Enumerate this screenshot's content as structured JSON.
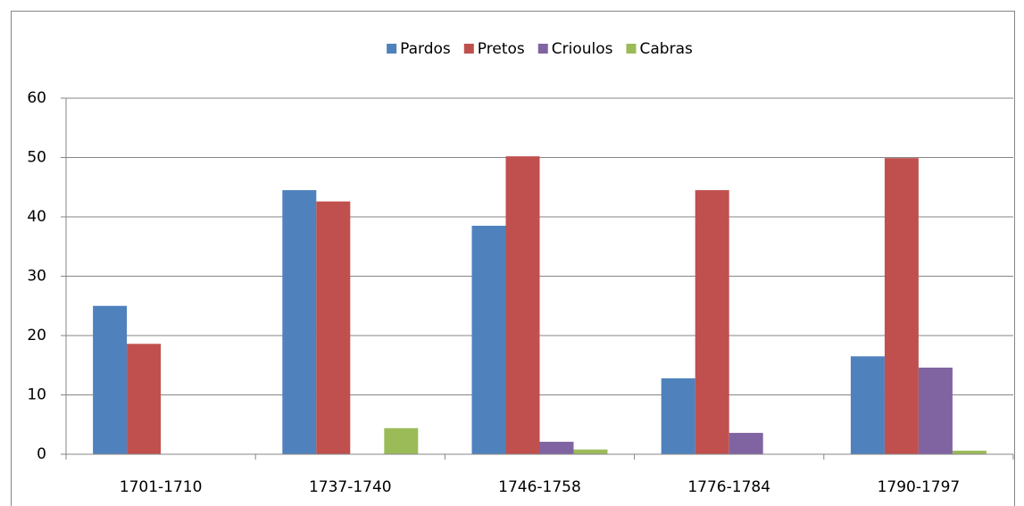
{
  "chart_data": {
    "type": "bar",
    "categories": [
      "1701-1710",
      "1737-1740",
      "1746-1758",
      "1776-1784",
      "1790-1797"
    ],
    "series": [
      {
        "name": "Pardos",
        "color": "#4f81bd",
        "values": [
          25.0,
          44.5,
          38.5,
          12.8,
          16.5
        ]
      },
      {
        "name": "Pretos",
        "color": "#c0504d",
        "values": [
          18.6,
          42.6,
          50.2,
          44.5,
          49.9
        ]
      },
      {
        "name": "Crioulos",
        "color": "#8064a2",
        "values": [
          0,
          0,
          2.1,
          3.6,
          14.6
        ]
      },
      {
        "name": "Cabras",
        "color": "#9bbb59",
        "values": [
          0,
          4.4,
          0.8,
          0,
          0.6
        ]
      }
    ],
    "ylim": [
      0,
      60
    ],
    "yticks": [
      0,
      10,
      20,
      30,
      40,
      50,
      60
    ],
    "grid": true,
    "legend": "top"
  }
}
